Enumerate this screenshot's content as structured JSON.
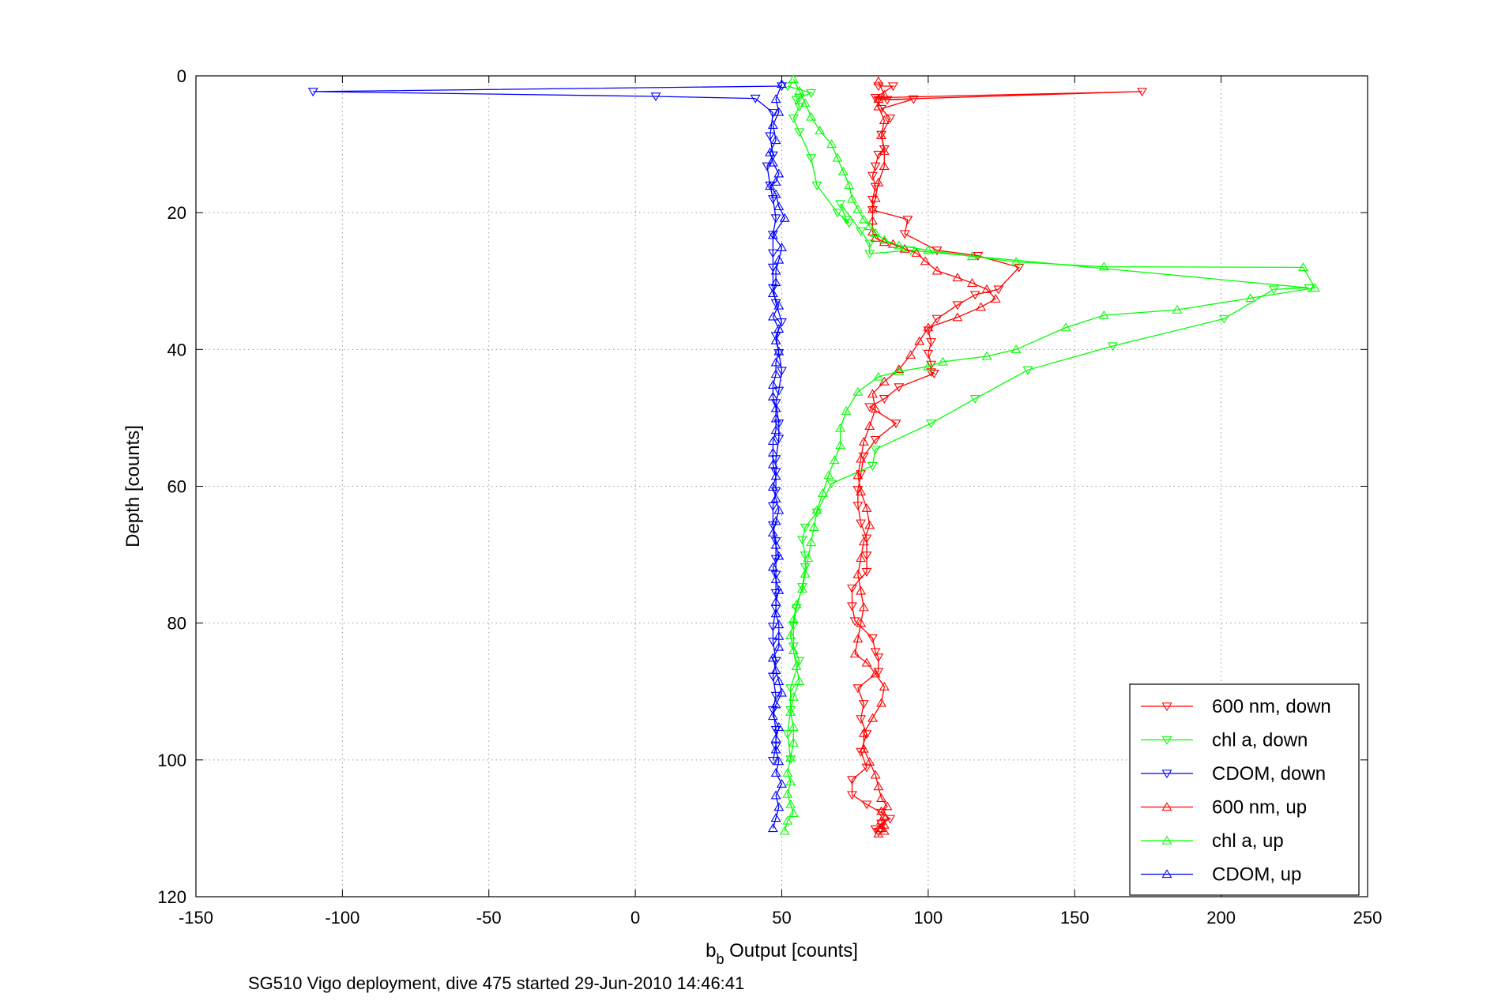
{
  "chart_data": {
    "type": "line",
    "title": "",
    "xlabel_main": "b",
    "xlabel_sub": "b",
    "xlabel_rest": " Output [counts]",
    "ylabel": "Depth [counts]",
    "caption": "SG510 Vigo deployment, dive 475 started 29-Jun-2010 14:46:41",
    "xlim": [
      -150,
      250
    ],
    "ylim": [
      0,
      120
    ],
    "y_reversed": true,
    "grid": true,
    "legend_position": "bottom-right",
    "x_ticks": [
      "-150",
      "-100",
      "-50",
      "0",
      "50",
      "100",
      "150",
      "200",
      "250"
    ],
    "y_ticks": [
      "0",
      "20",
      "40",
      "60",
      "80",
      "100",
      "120"
    ],
    "series": [
      {
        "name": "600 nm, down",
        "color": "#ff0000",
        "marker": "triangle-down",
        "x": [
          83,
          88,
          82,
          173,
          83,
          86,
          95,
          84,
          87,
          84,
          85,
          83,
          82,
          81,
          82,
          81,
          81,
          93,
          92,
          103,
          117,
          131,
          124,
          116,
          110,
          103,
          100,
          101,
          100,
          101,
          101,
          102,
          90,
          85,
          80,
          89,
          82,
          78,
          77,
          76,
          76,
          77,
          79,
          79,
          79,
          74,
          74,
          75,
          81,
          82,
          83,
          83,
          76,
          78,
          77,
          79,
          77,
          79,
          74,
          74,
          79,
          84,
          87,
          84,
          82,
          83
        ],
        "y": [
          1.5,
          1.5,
          3.2,
          2.3,
          3.5,
          3.5,
          3.4,
          4.8,
          6.2,
          8.6,
          10.7,
          11.5,
          13.2,
          14.6,
          16.2,
          18.1,
          19.6,
          21,
          23.1,
          25.5,
          26.3,
          28,
          31.2,
          32,
          33.5,
          35.5,
          37.2,
          38.9,
          40.6,
          42.2,
          43.3,
          43.5,
          45.5,
          47.2,
          48.4,
          50.8,
          53.2,
          55.6,
          58.2,
          60.5,
          62.8,
          65.4,
          67.6,
          70.1,
          72.5,
          74.9,
          77.5,
          79.7,
          82.2,
          84.2,
          85,
          87.1,
          89.5,
          91.8,
          94,
          96.2,
          98.8,
          101.1,
          102.9,
          105.1,
          106.5,
          107.7,
          108.6,
          109.3,
          110.1,
          110.5
        ]
      },
      {
        "name": "chl a, down",
        "color": "#00ff00",
        "marker": "triangle-down",
        "x": [
          52,
          60,
          56,
          55,
          56,
          54,
          56,
          60,
          62,
          69,
          73,
          72,
          70,
          77,
          80,
          80,
          94,
          230,
          218,
          201,
          163,
          134,
          116,
          101,
          82,
          81,
          67,
          62,
          58,
          57,
          58,
          58,
          57,
          55,
          54,
          54,
          56,
          53,
          53,
          52,
          53
        ],
        "y": [
          1.5,
          2.5,
          3.2,
          3.5,
          4.5,
          6.2,
          8.2,
          12,
          16,
          20,
          21.5,
          21,
          18.7,
          22.7,
          24.5,
          26,
          25.5,
          31,
          31.2,
          35.5,
          39.5,
          43,
          47.2,
          50.8,
          54.6,
          57,
          59.6,
          63.8,
          66,
          67.8,
          70.1,
          71.8,
          74.7,
          77.8,
          80.3,
          83.4,
          85.5,
          89.5,
          92.7,
          96.2,
          99.9
        ]
      },
      {
        "name": "CDOM, down",
        "color": "#0000ff",
        "marker": "triangle-down",
        "x": [
          50,
          -110,
          7,
          41,
          47,
          46,
          47,
          45,
          46,
          47,
          48,
          47,
          47,
          47,
          47,
          48,
          50,
          48,
          49,
          50,
          49,
          48,
          49,
          49,
          48,
          48,
          48,
          47,
          47,
          48,
          48,
          48,
          48,
          48,
          47,
          47,
          48,
          47,
          48,
          47,
          48,
          48,
          47
        ],
        "y": [
          1.5,
          2.3,
          3.0,
          3.3,
          5.4,
          8.8,
          11.6,
          13.2,
          16.0,
          18.0,
          20.8,
          23.2,
          25.9,
          28.0,
          31.0,
          33.2,
          36.0,
          38.0,
          40.5,
          43.1,
          46.0,
          47.8,
          50.8,
          53.0,
          56.0,
          57.9,
          60.7,
          62.9,
          65.7,
          68.0,
          70.6,
          72.9,
          75.6,
          77.9,
          80.5,
          82.7,
          85.5,
          87.8,
          90.6,
          92.7,
          95.6,
          98.0,
          100.1
        ]
      },
      {
        "name": "600 nm, up",
        "color": "#ff0000",
        "marker": "triangle-up",
        "x": [
          83,
          85,
          83,
          83,
          85,
          84,
          85,
          85,
          83,
          82,
          81,
          81,
          81,
          82,
          85,
          88,
          92,
          96,
          99,
          103,
          110,
          115,
          120,
          123,
          118,
          110,
          100,
          97,
          94,
          90,
          85,
          81,
          82,
          80,
          78,
          77,
          76,
          77,
          79,
          80,
          78,
          77,
          76,
          77,
          78,
          77,
          76,
          75,
          79,
          82,
          85,
          84,
          81,
          78,
          78,
          80,
          82,
          83,
          84,
          86,
          84,
          85,
          84,
          85,
          84,
          85,
          83
        ],
        "y": [
          0.8,
          2.8,
          3.4,
          4.5,
          6.5,
          8.7,
          11,
          13.2,
          15.6,
          17.9,
          19.5,
          21.2,
          22.8,
          23.7,
          24.3,
          24.6,
          25.3,
          25.9,
          27.1,
          28.5,
          29.5,
          30.3,
          31.2,
          32.6,
          33.8,
          35.3,
          36.8,
          38.8,
          40.8,
          42.9,
          44.7,
          46.5,
          48.7,
          51.2,
          53.5,
          56,
          58.4,
          60.8,
          63.2,
          65.7,
          68.1,
          70.5,
          72.9,
          75.3,
          77.7,
          80,
          82.3,
          84.5,
          85.8,
          87.4,
          89.3,
          91.7,
          93.9,
          96.1,
          98.4,
          100.3,
          102.2,
          103.9,
          105.6,
          106.8,
          107.5,
          108.2,
          108.9,
          109.5,
          110.0,
          110.4,
          110.8
        ]
      },
      {
        "name": "chl a, up",
        "color": "#00ff00",
        "marker": "triangle-up",
        "x": [
          54,
          56,
          58,
          60,
          63,
          67,
          69,
          71,
          73,
          74,
          76,
          78,
          80,
          82,
          85,
          90,
          100,
          115,
          130,
          160,
          228,
          232,
          210,
          185,
          160,
          147,
          130,
          120,
          105,
          100,
          90,
          83,
          76,
          72,
          70,
          70,
          68,
          66,
          64,
          62,
          61,
          60,
          59,
          58,
          57,
          55,
          54,
          53,
          54,
          55,
          56,
          54,
          53,
          54,
          54,
          53,
          52,
          53,
          52,
          53,
          54,
          52,
          51
        ],
        "y": [
          0.5,
          2.2,
          4.0,
          6.0,
          8.0,
          10.0,
          12.0,
          14.0,
          16.0,
          18.0,
          19.5,
          21.0,
          22.0,
          23.0,
          24.0,
          24.8,
          25.5,
          26.4,
          27.2,
          27.9,
          28.0,
          31.0,
          32.5,
          34.2,
          35.0,
          36.8,
          40.0,
          41.0,
          41.8,
          42.5,
          43.2,
          44.0,
          46.2,
          49.0,
          51.5,
          54.0,
          56.2,
          58.4,
          61.0,
          63.5,
          66.0,
          68.2,
          70.5,
          72.8,
          75.0,
          77.3,
          79.5,
          81.8,
          84.0,
          86.3,
          88.5,
          90.8,
          93.0,
          95.2,
          97.5,
          99.7,
          101.9,
          103.2,
          105.0,
          106.5,
          107.8,
          108.9,
          110.4
        ]
      },
      {
        "name": "CDOM, up",
        "color": "#0000ff",
        "marker": "triangle-up",
        "x": [
          50,
          48,
          49,
          47,
          48,
          46,
          47,
          49,
          48,
          46,
          48,
          49,
          51,
          47,
          50,
          49,
          48,
          48,
          47,
          49,
          47,
          49,
          48,
          49,
          48,
          48,
          47,
          47,
          48,
          48,
          48,
          47,
          47,
          47,
          48,
          47,
          48,
          49,
          48,
          47,
          48,
          49,
          47,
          48,
          49,
          48,
          48,
          49,
          49,
          49,
          47,
          48,
          49,
          50,
          48,
          47,
          49,
          48,
          48,
          49,
          48,
          50,
          48,
          49,
          48,
          47
        ],
        "y": [
          1.2,
          3.4,
          5.3,
          7.2,
          9.4,
          11.2,
          12.7,
          14.3,
          15.5,
          16.1,
          17.3,
          19.1,
          20.8,
          23.3,
          25.1,
          26.9,
          28.5,
          30.2,
          31.8,
          33.6,
          35.2,
          37.0,
          38.7,
          40.3,
          41.9,
          43.6,
          45.2,
          46.9,
          48.6,
          50.1,
          51.8,
          53.4,
          55.1,
          56.8,
          58.5,
          60.1,
          61.8,
          63.5,
          65.1,
          66.8,
          68.6,
          70.2,
          71.8,
          73.6,
          75.2,
          76.9,
          78.6,
          80.2,
          81.9,
          83.5,
          85.1,
          86.9,
          88.5,
          90.2,
          91.9,
          93.6,
          95.2,
          96.9,
          98.5,
          100.2,
          101.9,
          103.5,
          105.2,
          106.9,
          108.5,
          110.0
        ]
      }
    ]
  }
}
